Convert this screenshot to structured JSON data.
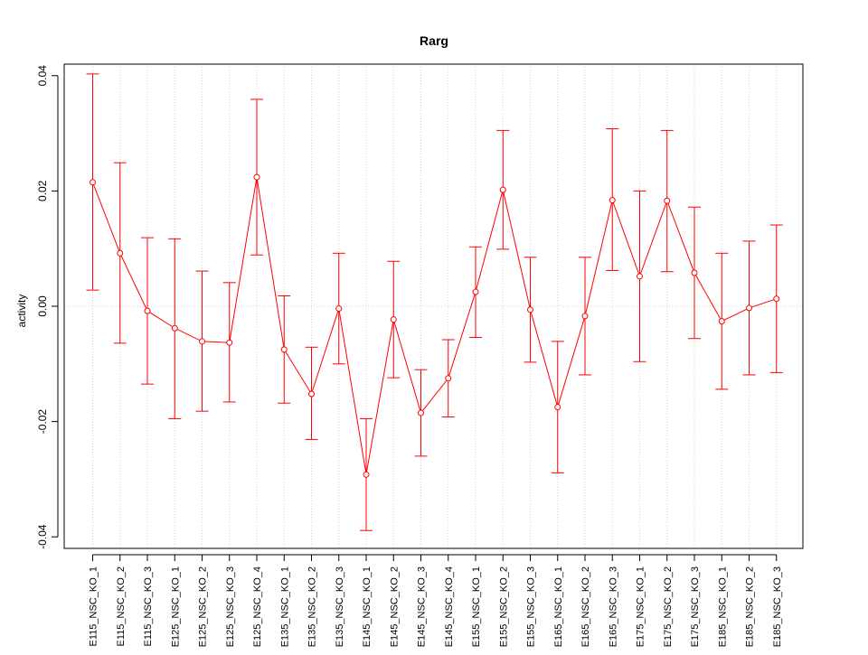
{
  "chart_data": {
    "type": "line",
    "title": "Rarg",
    "xlabel": "",
    "ylabel": "activity",
    "ylim": [
      -0.042,
      0.042
    ],
    "yticks": [
      -0.04,
      -0.02,
      0.0,
      0.02,
      0.04
    ],
    "ytick_labels": [
      "-0.04",
      "-0.02",
      "0.00",
      "0.02",
      "0.04"
    ],
    "grid": true,
    "color": "#ff0000",
    "categories": [
      "E115_NSC_KO_1",
      "E115_NSC_KO_2",
      "E115_NSC_KO_3",
      "E125_NSC_KO_1",
      "E125_NSC_KO_2",
      "E125_NSC_KO_3",
      "E125_NSC_KO_4",
      "E135_NSC_KO_1",
      "E135_NSC_KO_2",
      "E135_NSC_KO_3",
      "E145_NSC_KO_1",
      "E145_NSC_KO_2",
      "E145_NSC_KO_3",
      "E145_NSC_KO_4",
      "E155_NSC_KO_1",
      "E155_NSC_KO_2",
      "E155_NSC_KO_3",
      "E165_NSC_KO_1",
      "E165_NSC_KO_2",
      "E165_NSC_KO_3",
      "E175_NSC_KO_1",
      "E175_NSC_KO_2",
      "E175_NSC_KO_3",
      "E185_NSC_KO_1",
      "E185_NSC_KO_2",
      "E185_NSC_KO_3"
    ],
    "values": [
      0.0215,
      0.0092,
      -0.0008,
      -0.0038,
      -0.0061,
      -0.0063,
      0.0224,
      -0.0075,
      -0.0152,
      -0.0004,
      -0.0292,
      -0.0023,
      -0.0185,
      -0.0125,
      0.0025,
      0.0202,
      -0.0006,
      -0.0175,
      -0.0017,
      0.0184,
      0.0052,
      0.0183,
      0.0058,
      -0.0026,
      -0.0003,
      0.0013
    ],
    "upper": [
      0.0403,
      0.0249,
      0.0119,
      0.0117,
      0.0061,
      0.0041,
      0.0359,
      0.0018,
      -0.0071,
      0.0092,
      -0.0195,
      0.0078,
      -0.011,
      -0.0058,
      0.0103,
      0.0305,
      0.0085,
      -0.0061,
      0.0085,
      0.0308,
      0.02,
      0.0305,
      0.0172,
      0.0092,
      0.0113,
      0.0141
    ],
    "lower": [
      0.0028,
      -0.0064,
      -0.0135,
      -0.0195,
      -0.0182,
      -0.0166,
      0.0089,
      -0.0168,
      -0.0231,
      -0.01,
      -0.0389,
      -0.0124,
      -0.026,
      -0.0192,
      -0.0054,
      0.0099,
      -0.0097,
      -0.0289,
      -0.0119,
      0.0062,
      -0.0096,
      0.006,
      -0.0056,
      -0.0144,
      -0.0119,
      -0.0115
    ]
  }
}
